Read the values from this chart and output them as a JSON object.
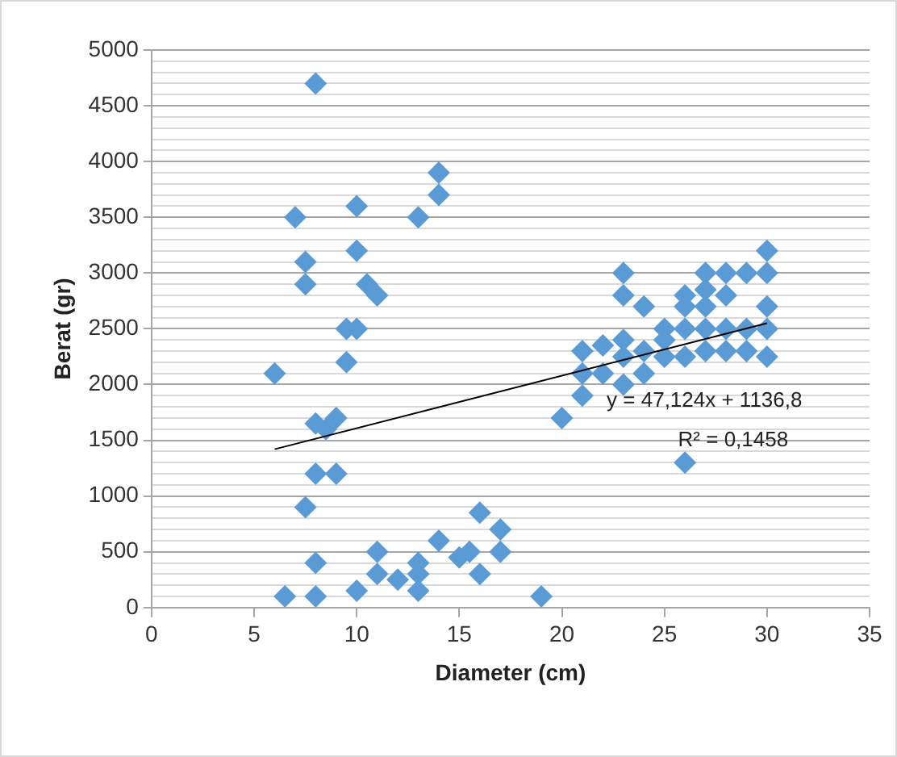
{
  "chart_data": {
    "type": "scatter",
    "xlabel": "Diameter (cm)",
    "ylabel": "Berat (gr)",
    "xlim": [
      0,
      35
    ],
    "xticks": [
      0,
      5,
      10,
      15,
      20,
      25,
      30,
      35
    ],
    "ylim": [
      0,
      5000
    ],
    "yticks": [
      0,
      {
        "value": 100,
        "label": null
      },
      {
        "value": 200,
        "label": null
      },
      {
        "value": 300,
        "label": null
      },
      {
        "value": 400,
        "label": null
      },
      500,
      {
        "value": 600,
        "label": null
      },
      {
        "value": 700,
        "label": null
      },
      {
        "value": 800,
        "label": null
      },
      {
        "value": 900,
        "label": null
      },
      1000,
      {
        "value": 1100,
        "label": null
      },
      {
        "value": 1200,
        "label": null
      },
      {
        "value": 1300,
        "label": null
      },
      {
        "value": 1400,
        "label": null
      },
      1500,
      {
        "value": 1600,
        "label": null
      },
      {
        "value": 1700,
        "label": null
      },
      {
        "value": 1800,
        "label": null
      },
      {
        "value": 1900,
        "label": null
      },
      2000,
      {
        "value": 2100,
        "label": null
      },
      {
        "value": 2200,
        "label": null
      },
      {
        "value": 2300,
        "label": null
      },
      {
        "value": 2400,
        "label": null
      },
      2500,
      {
        "value": 2600,
        "label": null
      },
      {
        "value": 2700,
        "label": null
      },
      {
        "value": 2800,
        "label": null
      },
      {
        "value": 2900,
        "label": null
      },
      3000,
      {
        "value": 3100,
        "label": null
      },
      {
        "value": 3200,
        "label": null
      },
      {
        "value": 3300,
        "label": null
      },
      {
        "value": 3400,
        "label": null
      },
      3500,
      {
        "value": 3600,
        "label": null
      },
      {
        "value": 3700,
        "label": null
      },
      {
        "value": 3800,
        "label": null
      },
      {
        "value": 3900,
        "label": null
      },
      4000,
      {
        "value": 4100,
        "label": null
      },
      {
        "value": 4200,
        "label": null
      },
      {
        "value": 4300,
        "label": null
      },
      {
        "value": 4400,
        "label": null
      },
      4500,
      {
        "value": 4600,
        "label": null
      },
      {
        "value": 4700,
        "label": null
      },
      {
        "value": 4800,
        "label": null
      },
      {
        "value": 4900,
        "label": null
      },
      5000
    ],
    "grid": "y",
    "legend": false,
    "marker": "diamond",
    "series": [
      {
        "color": "#5b9bd5",
        "x": [
          8,
          7,
          7.5,
          7.5,
          10,
          10,
          13,
          14,
          14,
          9.5,
          10,
          9.5,
          10.5,
          11,
          8,
          8.5,
          9,
          6,
          8,
          9,
          7.5,
          8,
          6.5,
          8,
          10,
          11,
          11,
          12,
          13,
          13,
          13,
          14,
          15,
          15.5,
          16,
          16,
          17,
          17,
          19,
          20,
          21,
          21,
          21,
          22,
          22,
          23,
          23,
          23,
          23,
          23,
          24,
          24,
          24,
          25,
          25,
          25,
          26,
          26,
          26,
          26,
          26,
          27,
          27,
          27,
          27,
          27,
          28,
          28,
          28,
          28,
          29,
          29,
          29,
          30,
          30,
          30,
          30,
          30
        ],
        "values": [
          4700,
          3500,
          3100,
          2900,
          3600,
          3200,
          3500,
          3900,
          3700,
          2500,
          2500,
          2200,
          2900,
          2800,
          1650,
          1600,
          1700,
          2100,
          1200,
          1200,
          900,
          400,
          100,
          100,
          150,
          500,
          300,
          250,
          400,
          300,
          150,
          600,
          450,
          500,
          850,
          300,
          700,
          500,
          100,
          1700,
          2300,
          1900,
          2100,
          2350,
          2100,
          3000,
          2800,
          2400,
          2250,
          2000,
          2700,
          2300,
          2100,
          2500,
          2400,
          2250,
          2800,
          2700,
          2500,
          2250,
          1300,
          3000,
          2850,
          2700,
          2500,
          2300,
          3000,
          2800,
          2500,
          2300,
          3000,
          2500,
          2300,
          3200,
          3000,
          2700,
          2500,
          2250
        ]
      },
      {
        "type": "line",
        "color": "#000000",
        "x": [
          6,
          30
        ],
        "values": [
          1420,
          2550
        ],
        "marker": "none"
      }
    ],
    "annotations": [
      "y = 47,124x + 1136,8",
      "R² = 0,1458"
    ]
  }
}
